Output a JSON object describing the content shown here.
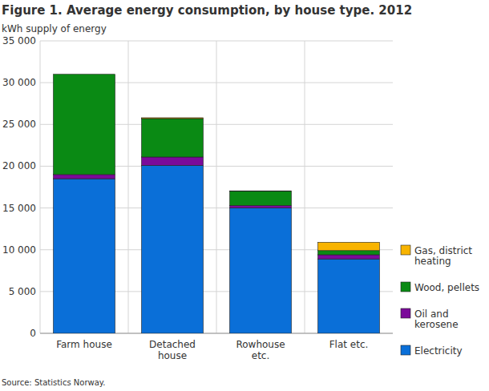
{
  "chart_data": {
    "type": "bar",
    "stacked": true,
    "title": "Figure 1. Average energy consumption, by house type. 2012",
    "y_label": "kWh supply of energy",
    "source": "Source: Statistics Norway.",
    "categories": [
      "Farm house",
      "Detached house",
      "Rowhouse etc.",
      "Flat etc."
    ],
    "series": [
      {
        "name": "Electricity",
        "color": "#0a6fd8",
        "values": [
          18500,
          20100,
          15000,
          8900
        ]
      },
      {
        "name": "Oil and kerosene",
        "color": "#7b0a9a",
        "values": [
          500,
          1000,
          300,
          500
        ]
      },
      {
        "name": "Wood, pellets",
        "color": "#0a8a14",
        "values": [
          12000,
          4600,
          1700,
          500
        ]
      },
      {
        "name": "Gas, district heating",
        "color": "#f8b400",
        "values": [
          0,
          100,
          50,
          1000
        ]
      }
    ],
    "ylim": [
      0,
      35000
    ],
    "yticks": [
      0,
      {
        "value": 5000,
        "label": "5 000"
      },
      {
        "value": 10000,
        "label": "10 000"
      },
      {
        "value": 15000,
        "label": "15 000"
      },
      {
        "value": 20000,
        "label": "20 000"
      },
      {
        "value": 25000,
        "label": "25 000"
      },
      {
        "value": 30000,
        "label": "30 000"
      },
      {
        "value": 35000,
        "label": "35 000"
      }
    ],
    "grid": true,
    "legend": "right"
  }
}
